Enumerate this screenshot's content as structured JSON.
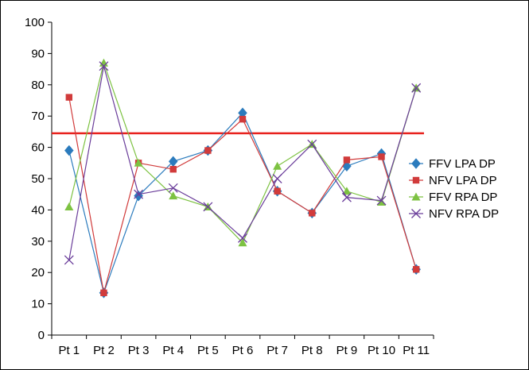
{
  "chart_data": {
    "type": "line",
    "title": "",
    "xlabel": "",
    "ylabel": "",
    "categories": [
      "Pt 1",
      "Pt 2",
      "Pt 3",
      "Pt 4",
      "Pt 5",
      "Pt 6",
      "Pt 7",
      "Pt 8",
      "Pt 9",
      "Pt 10",
      "Pt 11"
    ],
    "ylim": [
      0,
      100
    ],
    "yticks": [
      0,
      10,
      20,
      30,
      40,
      50,
      60,
      70,
      80,
      90,
      100
    ],
    "grid": false,
    "legend_position": "right",
    "reference_line": {
      "y": 64.5,
      "color": "#e8211d"
    },
    "series": [
      {
        "name": "FFV LPA DP",
        "color": "#2b7bbd",
        "marker": "diamond",
        "values": [
          59,
          13.5,
          44.5,
          55.5,
          59,
          71,
          46,
          39,
          54,
          58,
          21
        ]
      },
      {
        "name": "NFV LPA DP",
        "color": "#d13b3b",
        "marker": "square",
        "values": [
          76,
          13.5,
          55,
          53,
          59,
          69,
          46,
          39,
          56,
          57,
          21
        ]
      },
      {
        "name": "FFV RPA DP",
        "color": "#7dc242",
        "marker": "triangle",
        "values": [
          41,
          87,
          55,
          44.5,
          41,
          29.5,
          54,
          61,
          46,
          42.5,
          79
        ]
      },
      {
        "name": "NFV RPA DP",
        "color": "#6a3d9a",
        "marker": "x",
        "values": [
          24,
          86,
          45,
          47,
          41,
          31,
          50,
          61,
          44,
          43,
          79
        ]
      }
    ]
  }
}
